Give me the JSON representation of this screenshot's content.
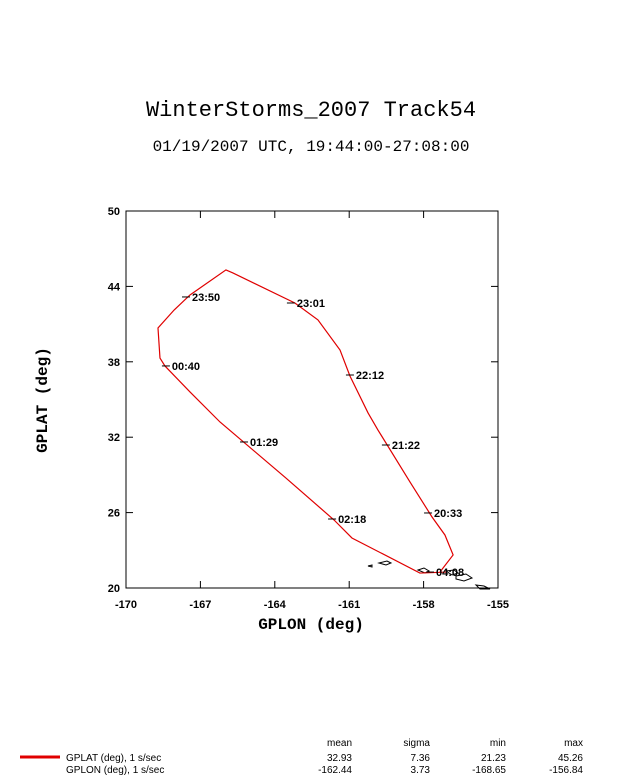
{
  "chart_data": {
    "type": "line",
    "title": "WinterStorms_2007 Track54",
    "subtitle": "01/19/2007 UTC, 19:44:00-27:08:00",
    "x_label": "GPLON (deg)",
    "y_label": "GPLAT (deg)",
    "x": [
      -157.34,
      -156.81,
      -157.14,
      -157.66,
      -158.55,
      -159.84,
      -160.24,
      -160.97,
      -161.37,
      -162.26,
      -163.19,
      -165.69,
      -165.97,
      -167.42,
      -168.06,
      -168.71,
      -168.63,
      -168.43,
      -167.42,
      -166.21,
      -163.55,
      -161.61,
      -160.89,
      -158.15,
      -157.06
    ],
    "series": [
      {
        "color": "#e00000",
        "values": [
          21.27,
          22.63,
          24.22,
          25.65,
          28.44,
          32.57,
          33.93,
          36.87,
          38.94,
          41.33,
          42.68,
          45.07,
          45.31,
          43.32,
          42.12,
          40.69,
          38.3,
          37.67,
          35.6,
          33.21,
          28.75,
          25.41,
          23.98,
          21.19,
          21.27
        ]
      }
    ],
    "xlim": [
      -170,
      -155
    ],
    "xticks": [
      -170,
      -167,
      -164,
      -161,
      -158,
      -155
    ],
    "ylim": [
      20,
      50
    ],
    "yticks": [
      20,
      26,
      32,
      38,
      44,
      50
    ],
    "annotations": [
      {
        "text": "23:50",
        "x": -167.5,
        "y": 43.16
      },
      {
        "text": "23:01",
        "x": -163.27,
        "y": 42.68
      },
      {
        "text": "22:12",
        "x": -160.89,
        "y": 36.95
      },
      {
        "text": "21:22",
        "x": -159.44,
        "y": 31.38
      },
      {
        "text": "20:33",
        "x": -157.74,
        "y": 25.97
      },
      {
        "text": "02:18",
        "x": -161.61,
        "y": 25.49
      },
      {
        "text": "01:29",
        "x": -165.16,
        "y": 31.62
      },
      {
        "text": "00:40",
        "x": -168.31,
        "y": 37.67
      },
      {
        "text": "04:08",
        "x": -157.66,
        "y": 21.27
      }
    ],
    "stats": {
      "columns": [
        "mean",
        "sigma",
        "min",
        "max"
      ],
      "rows": [
        {
          "label": "GPLAT (deg), 1 s/sec",
          "values": [
            32.93,
            7.36,
            21.23,
            45.26
          ]
        },
        {
          "label": "GPLON (deg), 1 s/sec",
          "values": [
            -162.44,
            3.73,
            -168.65,
            -156.84
          ]
        }
      ]
    }
  }
}
